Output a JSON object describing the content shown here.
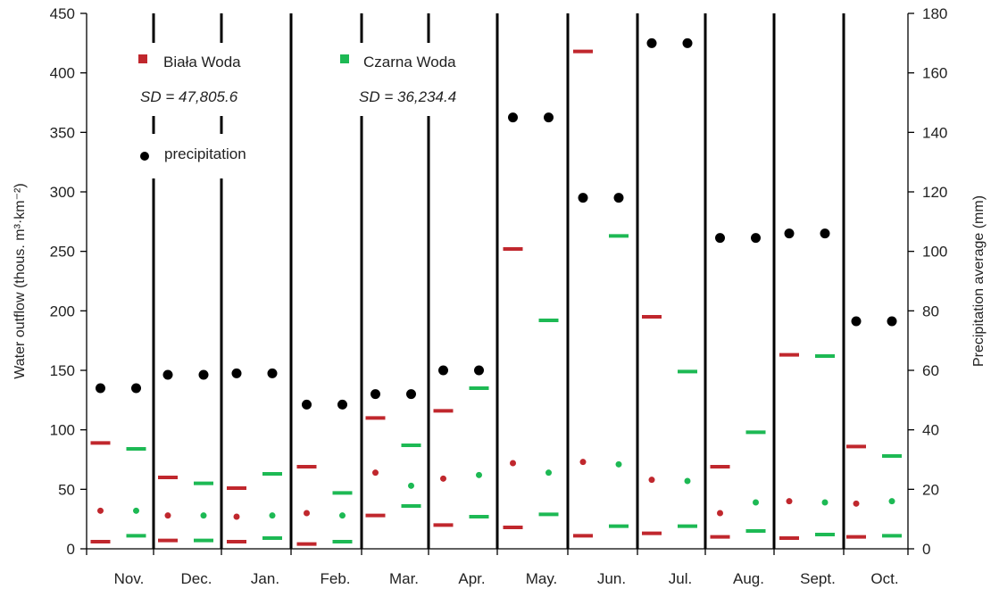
{
  "chart_data": {
    "type": "scatter",
    "title": "",
    "categories": [
      "Nov.",
      "Dec.",
      "Jan.",
      "Feb.",
      "Mar.",
      "Apr.",
      "May.",
      "Jun.",
      "Jul.",
      "Aug.",
      "Sept.",
      "Oct."
    ],
    "left_axis": {
      "label": "Water outflow (thous. m³·km⁻²)",
      "ylim": [
        0,
        450
      ],
      "ticks": [
        "0",
        "50",
        "100",
        "150",
        "200",
        "250",
        "300",
        "350",
        "400",
        "450"
      ]
    },
    "right_axis": {
      "label": "Precipitation average (mm)",
      "ylim": [
        0,
        180
      ],
      "ticks": [
        "0",
        "20",
        "40",
        "60",
        "80",
        "100",
        "120",
        "140",
        "160",
        "180"
      ]
    },
    "series": [
      {
        "name": "Biała Woda",
        "color": "#c0272d",
        "max": [
          89,
          60,
          51,
          69,
          110,
          116,
          252,
          418,
          195,
          69,
          163,
          86
        ],
        "mean": [
          32,
          28,
          27,
          30,
          64,
          59,
          72,
          73,
          58,
          30,
          40,
          38
        ],
        "min": [
          6,
          7,
          6,
          4,
          28,
          20,
          18,
          11,
          13,
          10,
          9,
          10
        ]
      },
      {
        "name": "Czarna Woda",
        "color": "#1db954",
        "max": [
          84,
          55,
          63,
          47,
          87,
          135,
          192,
          263,
          149,
          98,
          162,
          78
        ],
        "mean": [
          32,
          28,
          28,
          28,
          53,
          62,
          64,
          71,
          57,
          39,
          39,
          40
        ],
        "min": [
          11,
          7,
          9,
          6,
          36,
          27,
          29,
          19,
          19,
          15,
          12,
          11
        ]
      },
      {
        "name": "precipitation",
        "color": "#000000",
        "axis": "right",
        "values": [
          54,
          58.5,
          59,
          48.5,
          52,
          60,
          145,
          118,
          170,
          104.5,
          106,
          76.5
        ]
      }
    ],
    "legend": {
      "bialy_label": "Biała Woda",
      "bialy_sd": "SD = 47,805.6",
      "czarna_label": "Czarna Woda",
      "czarna_sd": "SD = 36,234.4",
      "precip_label": "precipitation",
      "placement": "top-left"
    },
    "grid": false
  }
}
